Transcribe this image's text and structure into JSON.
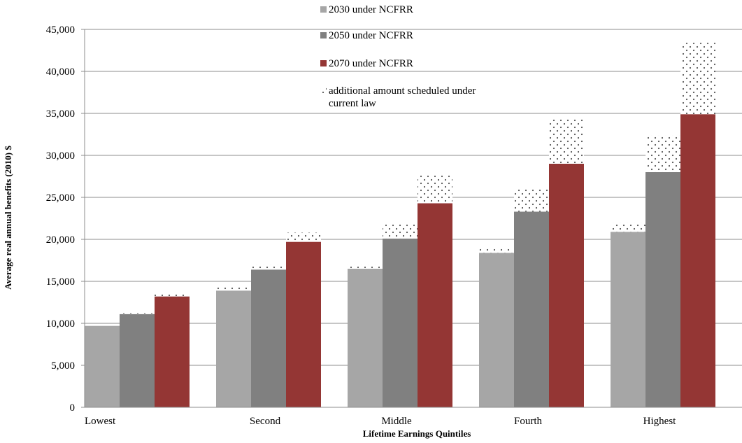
{
  "chart_data": {
    "type": "bar",
    "title": "",
    "xlabel": "Lifetime Earnings Quintiles",
    "ylabel": "Average real annual benefits (2010) $",
    "ylim": [
      0,
      45000
    ],
    "yticks": [
      0,
      5000,
      10000,
      15000,
      20000,
      25000,
      30000,
      35000,
      40000,
      45000
    ],
    "ytick_labels": [
      "0",
      "5,000",
      "10,000",
      "15,000",
      "20,000",
      "25,000",
      "30,000",
      "35,000",
      "40,000",
      "45,000"
    ],
    "categories": [
      "Lowest",
      "Second",
      "Middle",
      "Fourth",
      "Highest"
    ],
    "series": [
      {
        "name": "2030 under NCFRR",
        "color": "#a6a6a6",
        "values": [
          9700,
          13900,
          16500,
          18400,
          20900
        ],
        "additional": [
          150,
          400,
          500,
          600,
          1100
        ]
      },
      {
        "name": "2050 under NCFRR",
        "color": "#808080",
        "values": [
          11100,
          16400,
          20100,
          23300,
          28000
        ],
        "additional": [
          150,
          600,
          1800,
          2800,
          4400
        ]
      },
      {
        "name": "2070 under NCFRR",
        "color": "#943634",
        "values": [
          13200,
          19700,
          24300,
          29000,
          34900
        ],
        "additional": [
          300,
          1100,
          3500,
          5400,
          8500
        ]
      }
    ],
    "stack_series": {
      "name": "additional amount scheduled under current law",
      "lines": [
        "additional amount scheduled under",
        "current law"
      ],
      "pattern": "dots"
    },
    "grid": true,
    "legend_position": "top-center"
  }
}
